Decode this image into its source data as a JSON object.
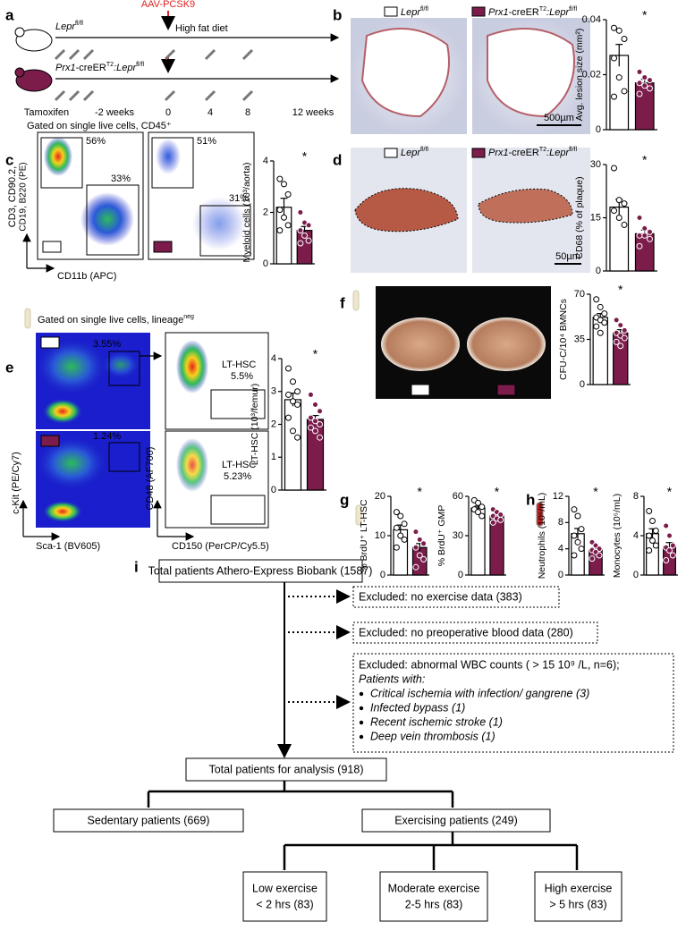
{
  "panel_labels": [
    "a",
    "b",
    "c",
    "d",
    "e",
    "f",
    "g",
    "h",
    "i"
  ],
  "genotypes": [
    [
      "Lepr",
      "fl/fl"
    ],
    [
      "Prx1",
      "-creER",
      "T2",
      ":Lepr",
      "fl/fl"
    ]
  ],
  "panel_a": {
    "injection": "AAV-PCSK9",
    "diet": "High fat diet",
    "tamoxifen": "Tamoxifen",
    "timepoints": [
      "-2 weeks",
      "0",
      "4",
      "8",
      "12 weeks"
    ]
  },
  "panel_b": {
    "scale_bar": "500µm"
  },
  "panel_c": {
    "gating": "Gated on single live cells, CD45⁺",
    "y_axis": [
      "CD3, CD90.2,",
      "CD19, B220 (PE)"
    ],
    "x_axis": "CD11b (APC)",
    "gates": [
      "56%",
      "33%",
      "51%",
      "31%"
    ]
  },
  "panel_d": {
    "scale_bar": "50µm"
  },
  "panel_e": {
    "gating": [
      "Gated on single live cells, lineage",
      "neg"
    ],
    "gates": [
      "3.55%",
      "1.24%"
    ],
    "population": "LT-HSC",
    "lt_hsc_gates": [
      "5.5%",
      "5.23%"
    ],
    "x_axis_1": "Sca-1 (BV605)",
    "y_axis_1": "c-Kit (PE/Cy7)",
    "x_axis_2": "CD150 (PerCP/Cy5.5)",
    "y_axis_2": "CD48 (AF700)"
  },
  "chart_data": [
    {
      "type": "bar",
      "ylabel": "Avg. lesion size (mm²)",
      "ylim": [
        0,
        0.04
      ],
      "yticks": [
        0,
        0.02,
        0.04
      ],
      "colors": [
        "#ffffff",
        "#7b1c4b"
      ],
      "values": [
        0.027,
        0.017
      ],
      "errors": [
        0.004,
        0.0013
      ],
      "points": [
        [
          0.037,
          0.036,
          0.033,
          0.026,
          0.019,
          0.014,
          0.012
        ],
        [
          0.021,
          0.019,
          0.018,
          0.017,
          0.016,
          0.015,
          0.013
        ]
      ],
      "annotation": "*"
    },
    {
      "type": "bar",
      "ylabel": "Myeloid cells (10³/aorta)",
      "ylim": [
        0,
        4
      ],
      "yticks": [
        0,
        2,
        4
      ],
      "colors": [
        "#ffffff",
        "#7b1c4b"
      ],
      "values": [
        2.2,
        1.3
      ],
      "errors": [
        0.35,
        0.15
      ],
      "points": [
        [
          3.3,
          3.1,
          2.7,
          2.1,
          1.8,
          1.5,
          1.3
        ],
        [
          2.0,
          1.6,
          1.5,
          1.3,
          1.1,
          0.9,
          0.8
        ]
      ],
      "annotation": "*"
    },
    {
      "type": "bar",
      "ylabel": "CD68 (% of plaque)",
      "ylim": [
        0,
        30
      ],
      "yticks": [
        0,
        15,
        30
      ],
      "colors": [
        "#ffffff",
        "#7b1c4b"
      ],
      "values": [
        18,
        10.5
      ],
      "errors": [
        2.2,
        1.0
      ],
      "points": [
        [
          29,
          20,
          19,
          17,
          15,
          13
        ],
        [
          15,
          12,
          11,
          10,
          10,
          9,
          7
        ]
      ],
      "annotation": "*"
    },
    {
      "type": "bar",
      "ylabel": "LT-HSC (10³/femur)",
      "ylim": [
        0,
        4
      ],
      "yticks": [
        0,
        1,
        2,
        3,
        4
      ],
      "colors": [
        "#ffffff",
        "#7b1c4b"
      ],
      "values": [
        2.75,
        2.15
      ],
      "errors": [
        0.2,
        0.12
      ],
      "points": [
        [
          3.7,
          3.3,
          3.0,
          2.9,
          2.7,
          2.6,
          2.2,
          1.8,
          1.6
        ],
        [
          2.9,
          2.6,
          2.4,
          2.2,
          2.1,
          2.0,
          1.9,
          1.8,
          1.6
        ]
      ],
      "annotation": "*"
    },
    {
      "type": "bar",
      "ylabel": "CFU-C/10⁴ BMNCs",
      "ylim": [
        0,
        70
      ],
      "yticks": [
        0,
        35,
        70
      ],
      "colors": [
        "#ffffff",
        "#7b1c4b"
      ],
      "values": [
        52,
        40
      ],
      "errors": [
        3,
        2.5
      ],
      "points": [
        [
          66,
          60,
          55,
          52,
          50,
          48,
          45,
          40
        ],
        [
          50,
          46,
          42,
          40,
          38,
          36,
          33,
          30
        ]
      ],
      "annotation": "*"
    },
    {
      "type": "bar",
      "ylabel": "% BrdU⁺ LT-HSC",
      "ylim": [
        0,
        20
      ],
      "yticks": [
        0,
        10,
        20
      ],
      "colors": [
        "#ffffff",
        "#7b1c4b"
      ],
      "values": [
        11.5,
        7
      ],
      "errors": [
        1.2,
        1.0
      ],
      "points": [
        [
          16,
          15,
          13,
          12,
          10,
          9,
          7
        ],
        [
          11,
          9,
          8,
          7,
          5,
          4,
          2
        ]
      ],
      "annotation": "*"
    },
    {
      "type": "bar",
      "ylabel": "% BrdU⁺ GMP",
      "ylim": [
        0,
        60
      ],
      "yticks": [
        0,
        30,
        60
      ],
      "colors": [
        "#ffffff",
        "#7b1c4b"
      ],
      "values": [
        51,
        45
      ],
      "errors": [
        1.5,
        1.2
      ],
      "points": [
        [
          57,
          55,
          52,
          50,
          48,
          45
        ],
        [
          50,
          48,
          46,
          45,
          43,
          42,
          40
        ]
      ],
      "annotation": "*"
    },
    {
      "type": "bar",
      "ylabel": "Neutrophils (10⁵/mL)",
      "ylim": [
        0,
        12
      ],
      "yticks": [
        0,
        4,
        8,
        12
      ],
      "colors": [
        "#ffffff",
        "#7b1c4b"
      ],
      "values": [
        6.3,
        3.8
      ],
      "errors": [
        0.8,
        0.4
      ],
      "points": [
        [
          10,
          9,
          7,
          6,
          5,
          4,
          3
        ],
        [
          5,
          4.5,
          4,
          3.8,
          3.5,
          3,
          2.5
        ]
      ],
      "annotation": "*"
    },
    {
      "type": "bar",
      "ylabel": "Monocytes (10⁵/mL)",
      "ylim": [
        0,
        8
      ],
      "yticks": [
        0,
        4,
        8
      ],
      "colors": [
        "#ffffff",
        "#7b1c4b"
      ],
      "values": [
        4.2,
        2.9
      ],
      "errors": [
        0.5,
        0.4
      ],
      "points": [
        [
          6.5,
          5.5,
          4.5,
          4,
          3.5,
          3,
          2.5
        ],
        [
          5,
          4,
          3,
          2.8,
          2.5,
          2,
          1.5
        ]
      ],
      "annotation": "*"
    }
  ],
  "flowchart": {
    "total": "Total patients Athero-Express Biobank (1587)",
    "excluded_1": "Excluded: no exercise data (383)",
    "excluded_2": "Excluded: no preoperative blood data (280)",
    "excluded_3": "Excluded: abnormal WBC counts ( > 15 10⁹ /L, n=6);",
    "patients_with": "Patients with:",
    "conditions": [
      "Critical ischemia with infection/ gangrene (3)",
      "Infected bypass (1)",
      "Recent ischemic stroke (1)",
      "Deep vein thrombosis (1)"
    ],
    "analysis": "Total patients for analysis (918)",
    "sedentary": "Sedentary patients (669)",
    "exercising": "Exercising patients (249)",
    "groups": [
      [
        "Low exercise",
        "< 2 hrs (83)"
      ],
      [
        "Moderate exercise",
        "2-5 hrs (83)"
      ],
      [
        "High exercise",
        "> 5 hrs (83)"
      ]
    ]
  }
}
